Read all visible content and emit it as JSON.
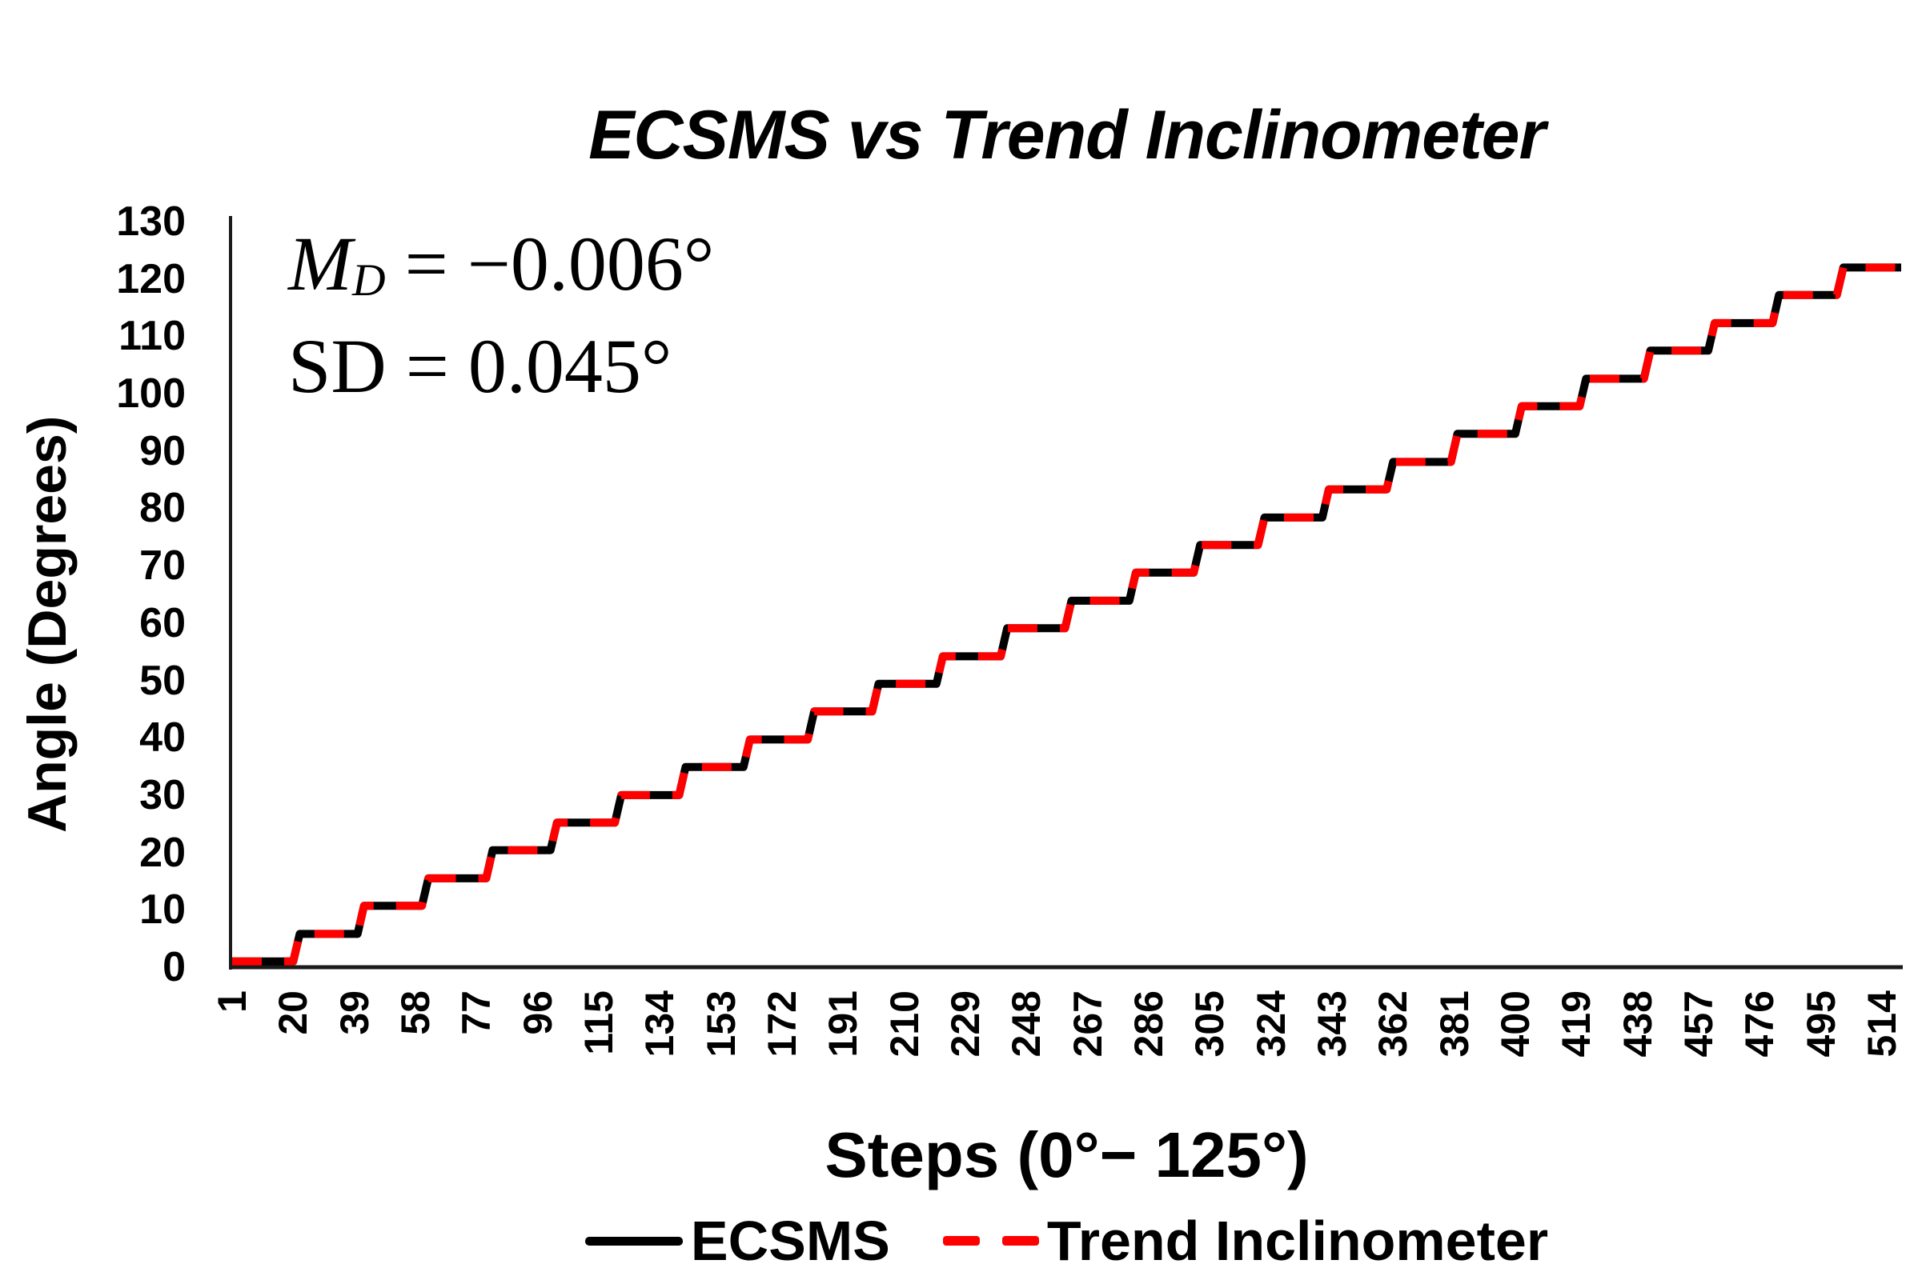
{
  "title": "ECSMS vs Trend Inclinometer",
  "annotations": {
    "md_symbol": "M",
    "md_subscript": "D",
    "md_rest": " = −0.006°",
    "sd": "SD = 0.045°"
  },
  "y_axis": {
    "title": "Angle (Degrees)",
    "min": 0,
    "max": 130,
    "tick_interval": 10,
    "ticks": [
      0,
      10,
      20,
      30,
      40,
      50,
      60,
      70,
      80,
      90,
      100,
      110,
      120,
      130
    ]
  },
  "x_axis": {
    "title": "Steps (0°− 125°)",
    "tick_labels": [
      "1",
      "20",
      "39",
      "58",
      "77",
      "96",
      "115",
      "134",
      "153",
      "172",
      "191",
      "210",
      "229",
      "248",
      "267",
      "286",
      "305",
      "324",
      "343",
      "362",
      "381",
      "400",
      "419",
      "438",
      "457",
      "476",
      "495",
      "514"
    ],
    "max_step": 520
  },
  "legend": {
    "items": [
      {
        "label": "ECSMS",
        "color": "#000000",
        "style": "solid"
      },
      {
        "label": "Trend Inclinometer",
        "color": "#FF0000",
        "style": "dashed"
      }
    ]
  },
  "chart_data": {
    "type": "line",
    "title": "ECSMS vs Trend Inclinometer",
    "xlabel": "Steps (0°− 125°)",
    "ylabel": "Angle (Degrees)",
    "xlim": [
      1,
      520
    ],
    "ylim": [
      0,
      130
    ],
    "grid": false,
    "legend_position": "bottom",
    "mean_difference_deg": -0.006,
    "standard_deviation_deg": 0.045,
    "series": [
      {
        "name": "ECSMS",
        "color": "#000000",
        "style": "solid",
        "line_width": 10
      },
      {
        "name": "Trend Inclinometer",
        "color": "#FF0000",
        "style": "dashed",
        "line_width": 10
      }
    ],
    "staircase_plateaus": [
      {
        "from": 1,
        "to": 20,
        "angle": 1.0
      },
      {
        "from": 22,
        "to": 40,
        "angle": 5.8
      },
      {
        "from": 42,
        "to": 60,
        "angle": 10.7
      },
      {
        "from": 62,
        "to": 80,
        "angle": 15.5
      },
      {
        "from": 82,
        "to": 100,
        "angle": 20.4
      },
      {
        "from": 102,
        "to": 120,
        "angle": 25.2
      },
      {
        "from": 122,
        "to": 140,
        "angle": 30.0
      },
      {
        "from": 142,
        "to": 160,
        "angle": 34.9
      },
      {
        "from": 162,
        "to": 180,
        "angle": 39.7
      },
      {
        "from": 182,
        "to": 200,
        "angle": 44.6
      },
      {
        "from": 202,
        "to": 220,
        "angle": 49.4
      },
      {
        "from": 222,
        "to": 240,
        "angle": 54.2
      },
      {
        "from": 242,
        "to": 260,
        "angle": 59.1
      },
      {
        "from": 262,
        "to": 280,
        "angle": 63.9
      },
      {
        "from": 282,
        "to": 300,
        "angle": 68.8
      },
      {
        "from": 302,
        "to": 320,
        "angle": 73.6
      },
      {
        "from": 322,
        "to": 340,
        "angle": 78.4
      },
      {
        "from": 342,
        "to": 360,
        "angle": 83.3
      },
      {
        "from": 362,
        "to": 380,
        "angle": 88.1
      },
      {
        "from": 382,
        "to": 400,
        "angle": 93.0
      },
      {
        "from": 402,
        "to": 420,
        "angle": 97.8
      },
      {
        "from": 422,
        "to": 440,
        "angle": 102.6
      },
      {
        "from": 442,
        "to": 460,
        "angle": 107.5
      },
      {
        "from": 462,
        "to": 480,
        "angle": 112.3
      },
      {
        "from": 482,
        "to": 500,
        "angle": 117.2
      },
      {
        "from": 502,
        "to": 520,
        "angle": 122.0
      }
    ]
  }
}
